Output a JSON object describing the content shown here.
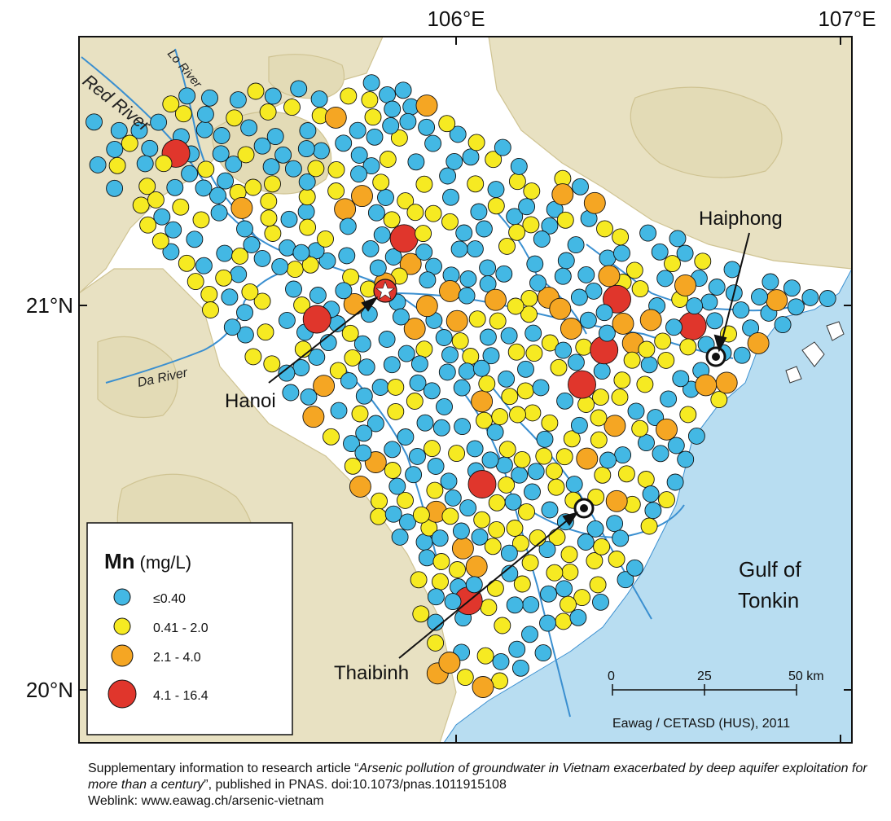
{
  "map": {
    "lon_labels": [
      "106°E",
      "107°E"
    ],
    "lat_labels": [
      "21°N",
      "20°N"
    ],
    "colors": {
      "land": "#ffffff",
      "terrain": "#d2c99a",
      "sea": "#b8ddf1",
      "river": "#3a8fd0",
      "frame": "#000000"
    },
    "rivers": [
      {
        "id": "red",
        "label": "Red River"
      },
      {
        "id": "lo",
        "label": "Lo River"
      },
      {
        "id": "da",
        "label": "Da River"
      }
    ],
    "cities": [
      {
        "id": "hanoi",
        "label": "Hanoi",
        "symbol": "star-icon"
      },
      {
        "id": "haiphong",
        "label": "Haiphong",
        "symbol": "bullseye-icon"
      },
      {
        "id": "thaibinh",
        "label": "Thaibinh",
        "symbol": "bullseye-icon"
      }
    ],
    "sea_label": [
      "Gulf of",
      "Tonkin"
    ],
    "scale_bar": {
      "ticks": [
        "0",
        "25",
        "50 km"
      ]
    },
    "credit": "Eawag / CETASD (HUS), 2011"
  },
  "legend": {
    "element": "Mn",
    "unit": "(mg/L)",
    "classes": [
      {
        "label": "≤0.40",
        "color": "#43b8e4"
      },
      {
        "label": "0.41 - 2.0",
        "color": "#f6ea22"
      },
      {
        "label": "2.1 - 4.0",
        "color": "#f5a623"
      },
      {
        "label": "4.1 - 16.4",
        "color": "#e0362c"
      }
    ]
  },
  "caption": {
    "prefix": "Supplementary information to research article “",
    "title": "Arsenic pollution of groundwater in Vietnam exacerbated by deep aquifer exploitation for more than a century",
    "suffix": "”, published in PNAS. doi:10.1073/pnas.1011915108",
    "weblink": "Weblink: www.eawag.ch/arsenic-vietnam"
  }
}
